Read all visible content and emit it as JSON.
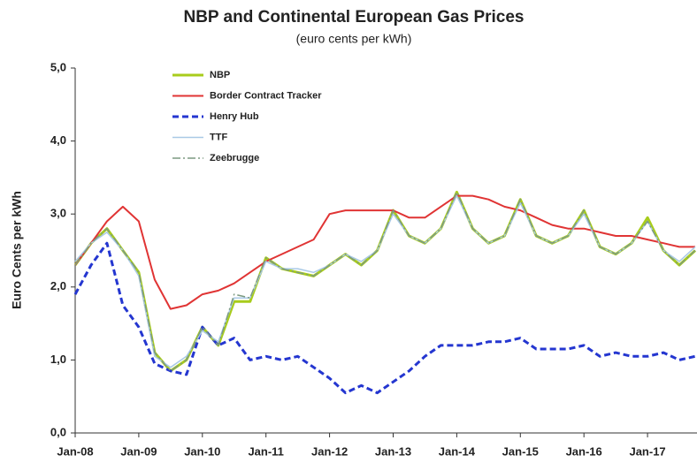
{
  "chart_data": {
    "type": "line",
    "title": "NBP and Continental European Gas Prices",
    "subtitle": "(euro cents per kWh)",
    "y_label": "Euro Cents per kWh",
    "categories": [
      "Jan-08",
      null,
      null,
      null,
      "Jan-09",
      null,
      null,
      null,
      "Jan-10",
      null,
      null,
      null,
      "Jan-11",
      null,
      null,
      null,
      "Jan-12",
      null,
      null,
      null,
      "Jan-13",
      null,
      null,
      null,
      "Jan-14",
      null,
      null,
      null,
      "Jan-15",
      null,
      null,
      null,
      "Jan-16",
      null,
      null,
      null,
      "Jan-17",
      null,
      null,
      null
    ],
    "ylim": [
      0,
      5
    ],
    "yticks": [
      {
        "value": 0,
        "label": "0,0"
      },
      {
        "value": 1,
        "label": "1,0"
      },
      {
        "value": 2,
        "label": "2,0"
      },
      {
        "value": 3,
        "label": "3,0"
      },
      {
        "value": 4,
        "label": "4,0"
      },
      {
        "value": 5,
        "label": "5,0"
      }
    ],
    "legend": "top-left",
    "series": [
      {
        "name": "NBP",
        "color": "#a8cc1c",
        "width": 3,
        "dash": "solid",
        "values": [
          2.3,
          2.6,
          2.8,
          2.5,
          2.2,
          1.1,
          0.85,
          1.0,
          1.45,
          1.2,
          1.8,
          1.8,
          2.4,
          2.25,
          2.2,
          2.15,
          2.3,
          2.45,
          2.3,
          2.5,
          3.05,
          2.7,
          2.6,
          2.8,
          3.3,
          2.8,
          2.6,
          2.7,
          3.2,
          2.7,
          2.6,
          2.7,
          3.05,
          2.55,
          2.45,
          2.6,
          2.95,
          2.5,
          2.3,
          2.5
        ]
      },
      {
        "name": "Border Contract Tracker",
        "color": "#e03434",
        "width": 2,
        "dash": "solid",
        "values": [
          2.3,
          2.6,
          2.9,
          3.1,
          2.9,
          2.1,
          1.7,
          1.75,
          1.9,
          1.95,
          2.05,
          2.2,
          2.35,
          2.45,
          2.55,
          2.65,
          3.0,
          3.05,
          3.05,
          3.05,
          3.05,
          2.95,
          2.95,
          3.1,
          3.25,
          3.25,
          3.2,
          3.1,
          3.05,
          2.95,
          2.85,
          2.8,
          2.8,
          2.75,
          2.7,
          2.7,
          2.65,
          2.6,
          2.55,
          2.55
        ]
      },
      {
        "name": "Henry Hub",
        "color": "#2436d0",
        "width": 3,
        "dash": "dashed",
        "values": [
          1.9,
          2.3,
          2.6,
          1.75,
          1.45,
          0.95,
          0.85,
          0.8,
          1.45,
          1.2,
          1.3,
          1.0,
          1.05,
          1.0,
          1.05,
          0.9,
          0.75,
          0.55,
          0.65,
          0.55,
          0.7,
          0.85,
          1.05,
          1.2,
          1.2,
          1.2,
          1.25,
          1.25,
          1.3,
          1.15,
          1.15,
          1.15,
          1.2,
          1.05,
          1.1,
          1.05,
          1.05,
          1.1,
          1.0,
          1.05
        ]
      },
      {
        "name": "TTF",
        "color": "#a9c9e6",
        "width": 1.5,
        "dash": "solid",
        "values": [
          2.35,
          2.6,
          2.75,
          2.5,
          2.15,
          1.05,
          0.9,
          1.05,
          1.4,
          1.25,
          1.85,
          1.85,
          2.35,
          2.25,
          2.25,
          2.2,
          2.3,
          2.45,
          2.35,
          2.5,
          3.0,
          2.7,
          2.6,
          2.8,
          3.25,
          2.8,
          2.6,
          2.7,
          3.15,
          2.7,
          2.6,
          2.7,
          3.0,
          2.55,
          2.45,
          2.6,
          2.9,
          2.5,
          2.35,
          2.55
        ]
      },
      {
        "name": "Zeebrugge",
        "color": "#7c9a80",
        "width": 1.5,
        "dash": "dashdot",
        "values": [
          2.3,
          2.6,
          2.8,
          2.5,
          2.2,
          1.1,
          0.85,
          1.0,
          1.45,
          1.2,
          1.9,
          1.85,
          2.4,
          2.25,
          2.2,
          2.15,
          2.3,
          2.45,
          2.3,
          2.5,
          3.05,
          2.7,
          2.6,
          2.8,
          3.3,
          2.8,
          2.6,
          2.7,
          3.2,
          2.7,
          2.6,
          2.7,
          3.05,
          2.55,
          2.45,
          2.6,
          2.9,
          2.5,
          2.3,
          2.5
        ]
      }
    ]
  }
}
